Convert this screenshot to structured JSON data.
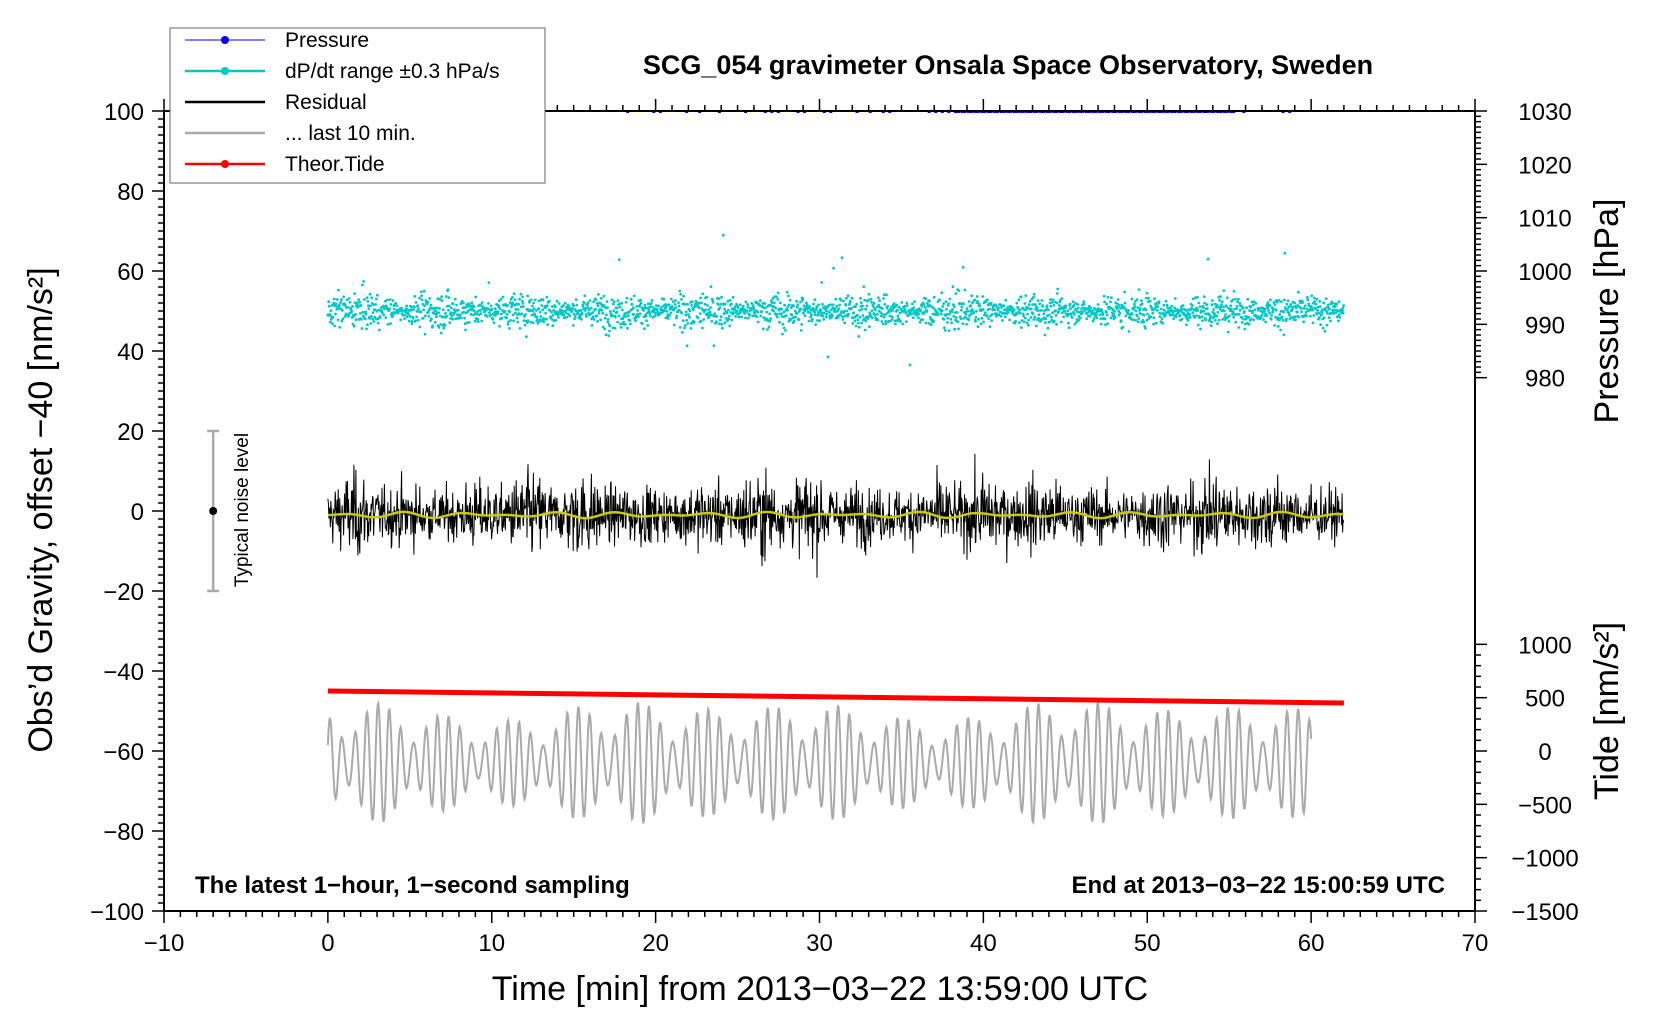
{
  "colors": {
    "pressure": "#0000ff",
    "dpdt": "#00c8c8",
    "residual": "#000000",
    "last10": "#aaaaaa",
    "tide": "#ff0000",
    "smooth": "#c8c814",
    "noise_bar": "#aaaaaa"
  },
  "chart_data": {
    "type": "line",
    "title": "SCG_054 gravimeter Onsala Space Observatory, Sweden",
    "xlabel": "Time [min] from 2013−03−22 13:59:00 UTC",
    "ylabel_left": "Obs’d Gravity, offset −40 [nm/s²]",
    "ylabel_right_pressure": "Pressure [hPa]",
    "ylabel_right_tide": "Tide [nm/s²]",
    "xlim": [
      -10,
      70
    ],
    "ylim": [
      -100,
      100
    ],
    "x_ticks": [
      -10,
      0,
      10,
      20,
      30,
      40,
      50,
      60,
      70
    ],
    "x_tick_labels": [
      "−10",
      "0",
      "10",
      "20",
      "30",
      "40",
      "50",
      "60",
      "70"
    ],
    "y_ticks": [
      -100,
      -80,
      -60,
      -40,
      -20,
      0,
      20,
      40,
      60,
      80,
      100
    ],
    "y_tick_labels": [
      "−100",
      "−80",
      "−60",
      "−40",
      "−20",
      "0",
      "20",
      "40",
      "60",
      "80",
      "100"
    ],
    "pressure_axis": {
      "range": [
        970,
        1030
      ],
      "ticks": [
        980,
        990,
        1000,
        1010,
        1020,
        1030
      ],
      "tick_labels": [
        "980",
        "990",
        "1000",
        "1010",
        "1020",
        "1030"
      ]
    },
    "tide_axis": {
      "range": [
        -1500,
        1500
      ],
      "ticks": [
        -1500,
        -1000,
        -500,
        0,
        500,
        1000
      ],
      "tick_labels": [
        "−1500",
        "−1000",
        "−500",
        "0",
        "500",
        "1000"
      ]
    },
    "series": [
      {
        "name": "Pressure",
        "color": "#0000ff",
        "description": "near top limit at 1030 hPa",
        "x_range": [
          17,
          59
        ],
        "value_hpa": 1030
      },
      {
        "name": "dP/dt range ±0.3 hPa/s",
        "color": "#00c8c8",
        "center": 50,
        "typical_spread": 3,
        "max_excursion": 20,
        "x_range": [
          0,
          62
        ]
      },
      {
        "name": "Residual",
        "color": "#000000",
        "center": -1,
        "amplitude": 12,
        "x_range": [
          0,
          62
        ]
      },
      {
        "name": "... last 10 min.",
        "color": "#aaaaaa",
        "center": -63,
        "amplitude": 15,
        "x_range": [
          0,
          60
        ]
      },
      {
        "name": "Theor.Tide",
        "color": "#ff0000",
        "x": [
          0,
          62
        ],
        "y_left_units": [
          -45,
          -48
        ]
      }
    ],
    "legend": [
      {
        "label": "Pressure",
        "color": "#0000ff",
        "marker": true
      },
      {
        "label": "dP/dt range ±0.3 hPa/s",
        "color": "#00c8c8",
        "marker": true
      },
      {
        "label": "Residual",
        "color": "#000000",
        "marker": false
      },
      {
        "label": "... last 10 min.",
        "color": "#aaaaaa",
        "marker": false
      },
      {
        "label": "Theor.Tide",
        "color": "#ff0000",
        "marker": true
      }
    ],
    "legend_position": "top-left",
    "noise_bar": {
      "label": "Typical noise level",
      "x": -7,
      "center": 0,
      "low": -20,
      "high": 20
    },
    "annotation_left": "The latest 1−hour, 1−second sampling",
    "annotation_right": "End at 2013−03−22 15:00:59 UTC"
  }
}
